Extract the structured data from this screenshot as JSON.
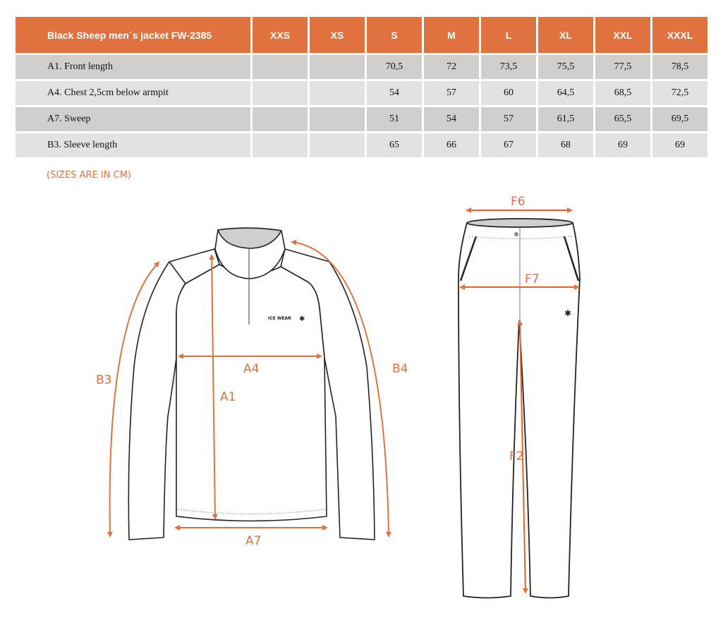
{
  "table": {
    "title": "Black Sheep men´s jacket FW-2385",
    "sizes": [
      "XXS",
      "XS",
      "S",
      "M",
      "L",
      "XL",
      "XXL",
      "XXXL"
    ],
    "rows": [
      {
        "label": "A1. Front length",
        "values": [
          "",
          "",
          "70,5",
          "72",
          "73,5",
          "75,5",
          "77,5",
          "78,5"
        ]
      },
      {
        "label": "A4. Chest 2,5cm below armpit",
        "values": [
          "",
          "",
          "54",
          "57",
          "60",
          "64,5",
          "68,5",
          "72,5"
        ]
      },
      {
        "label": "A7. Sweep",
        "values": [
          "",
          "",
          "51",
          "54",
          "57",
          "61,5",
          "65,5",
          "69,5"
        ]
      },
      {
        "label": "B3. Sleeve length",
        "values": [
          "",
          "",
          "65",
          "66",
          "67",
          "68",
          "69",
          "69"
        ]
      }
    ]
  },
  "note": "(SIZES ARE IN CM)",
  "jacket": {
    "labels": {
      "a1": "A1",
      "a4": "A4",
      "a7": "A7",
      "b3": "B3",
      "b4": "B4"
    },
    "logo": "ICE WEAR"
  },
  "pants": {
    "labels": {
      "f2": "F2",
      "f6": "F6",
      "f7": "F7"
    }
  },
  "colors": {
    "accent": "#e07240",
    "row_dark": "#d0cfcd",
    "row_light": "#e3e2e0"
  }
}
